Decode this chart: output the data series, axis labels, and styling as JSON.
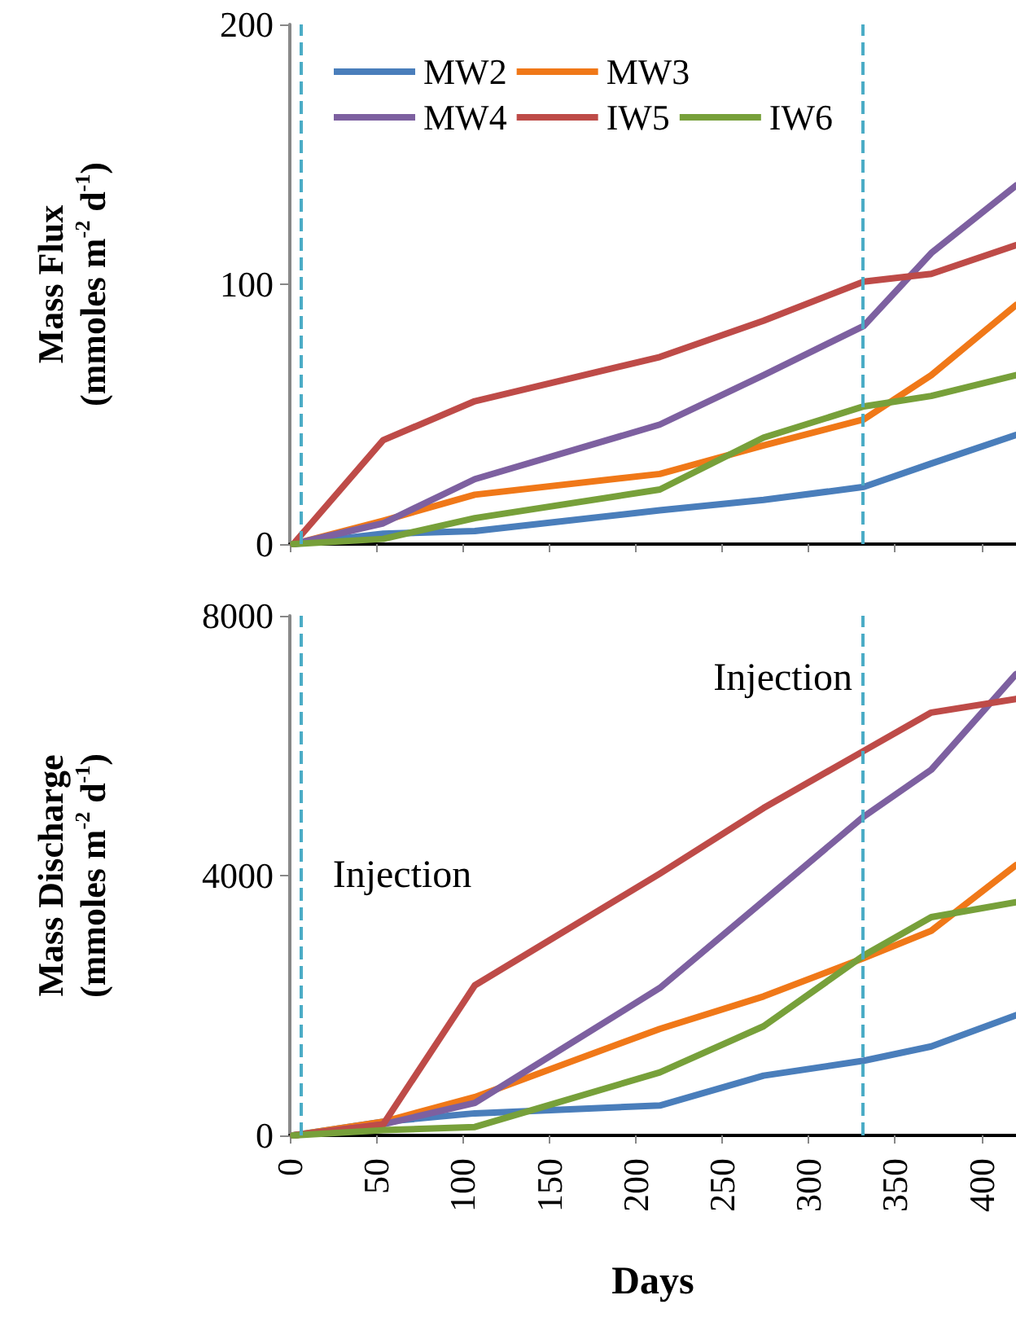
{
  "chart_data": [
    {
      "type": "line",
      "ylabel": "Mass Flux\n(mmoles m$^{-2}$ d$^{-1}$)",
      "x": [
        2,
        54,
        107,
        214,
        274,
        332,
        371,
        420
      ],
      "series": [
        {
          "name": "MW2",
          "color": "#4a7ebb",
          "values": [
            0,
            4,
            5,
            13,
            17,
            22,
            31,
            42
          ]
        },
        {
          "name": "MW3",
          "color": "#f07818",
          "values": [
            0,
            9,
            19,
            27,
            38,
            48,
            65,
            92
          ]
        },
        {
          "name": "MW4",
          "color": "#7d60a0",
          "values": [
            0,
            8,
            25,
            46,
            65,
            84,
            112,
            138
          ]
        },
        {
          "name": "IW5",
          "color": "#be4b48",
          "values": [
            0,
            40,
            55,
            72,
            86,
            101,
            104,
            115
          ]
        },
        {
          "name": "IW6",
          "color": "#77a03a",
          "values": [
            0,
            2,
            10,
            21,
            41,
            53,
            57,
            65
          ]
        }
      ],
      "xlim": [
        0,
        420
      ],
      "xticks": [
        0,
        50,
        100,
        150,
        200,
        250,
        300,
        350,
        400
      ],
      "ylim": [
        0,
        200
      ],
      "yticks": [
        0,
        100,
        200
      ],
      "tick_labels": "y",
      "legend": "top left",
      "grid": false,
      "marker": "none",
      "line_style": "solid",
      "ref_lines": [
        {
          "axis": "x",
          "value": 6,
          "color": "#4bacc6",
          "line_style": "dashed"
        },
        {
          "axis": "x",
          "value": 331,
          "color": "#4bacc6",
          "line_style": "dashed"
        }
      ]
    },
    {
      "type": "line",
      "xlabel": "Days",
      "ylabel": "Mass Discharge\n(mmoles m$^{-2}$ d$^{-1}$)",
      "x": [
        2,
        54,
        107,
        214,
        274,
        332,
        371,
        420
      ],
      "series": [
        {
          "color": "#4a7ebb",
          "values": [
            0,
            210,
            340,
            460,
            920,
            1150,
            1370,
            1850
          ]
        },
        {
          "color": "#f07818",
          "values": [
            0,
            210,
            590,
            1640,
            2140,
            2730,
            3150,
            4160
          ]
        },
        {
          "color": "#7d60a0",
          "values": [
            0,
            170,
            500,
            2270,
            3610,
            4910,
            5630,
            7100
          ]
        },
        {
          "color": "#be4b48",
          "values": [
            0,
            170,
            2310,
            4030,
            5040,
            5920,
            6510,
            6720
          ]
        },
        {
          "color": "#77a03a",
          "values": [
            0,
            80,
            130,
            970,
            1680,
            2770,
            3360,
            3590
          ]
        }
      ],
      "xlim": [
        0,
        420
      ],
      "xticks": [
        0,
        50,
        100,
        150,
        200,
        250,
        300,
        350,
        400
      ],
      "ylim": [
        0,
        8000
      ],
      "yticks": [
        0,
        4000,
        8000
      ],
      "legend": false,
      "grid": false,
      "marker": "none",
      "line_style": "solid",
      "ref_lines": [
        {
          "axis": "x",
          "value": 6,
          "label": "Injection",
          "color": "#4bacc6",
          "line_style": "dashed"
        },
        {
          "axis": "x",
          "value": 331,
          "label": "Injection",
          "color": "#4bacc6",
          "line_style": "dashed"
        }
      ]
    }
  ]
}
